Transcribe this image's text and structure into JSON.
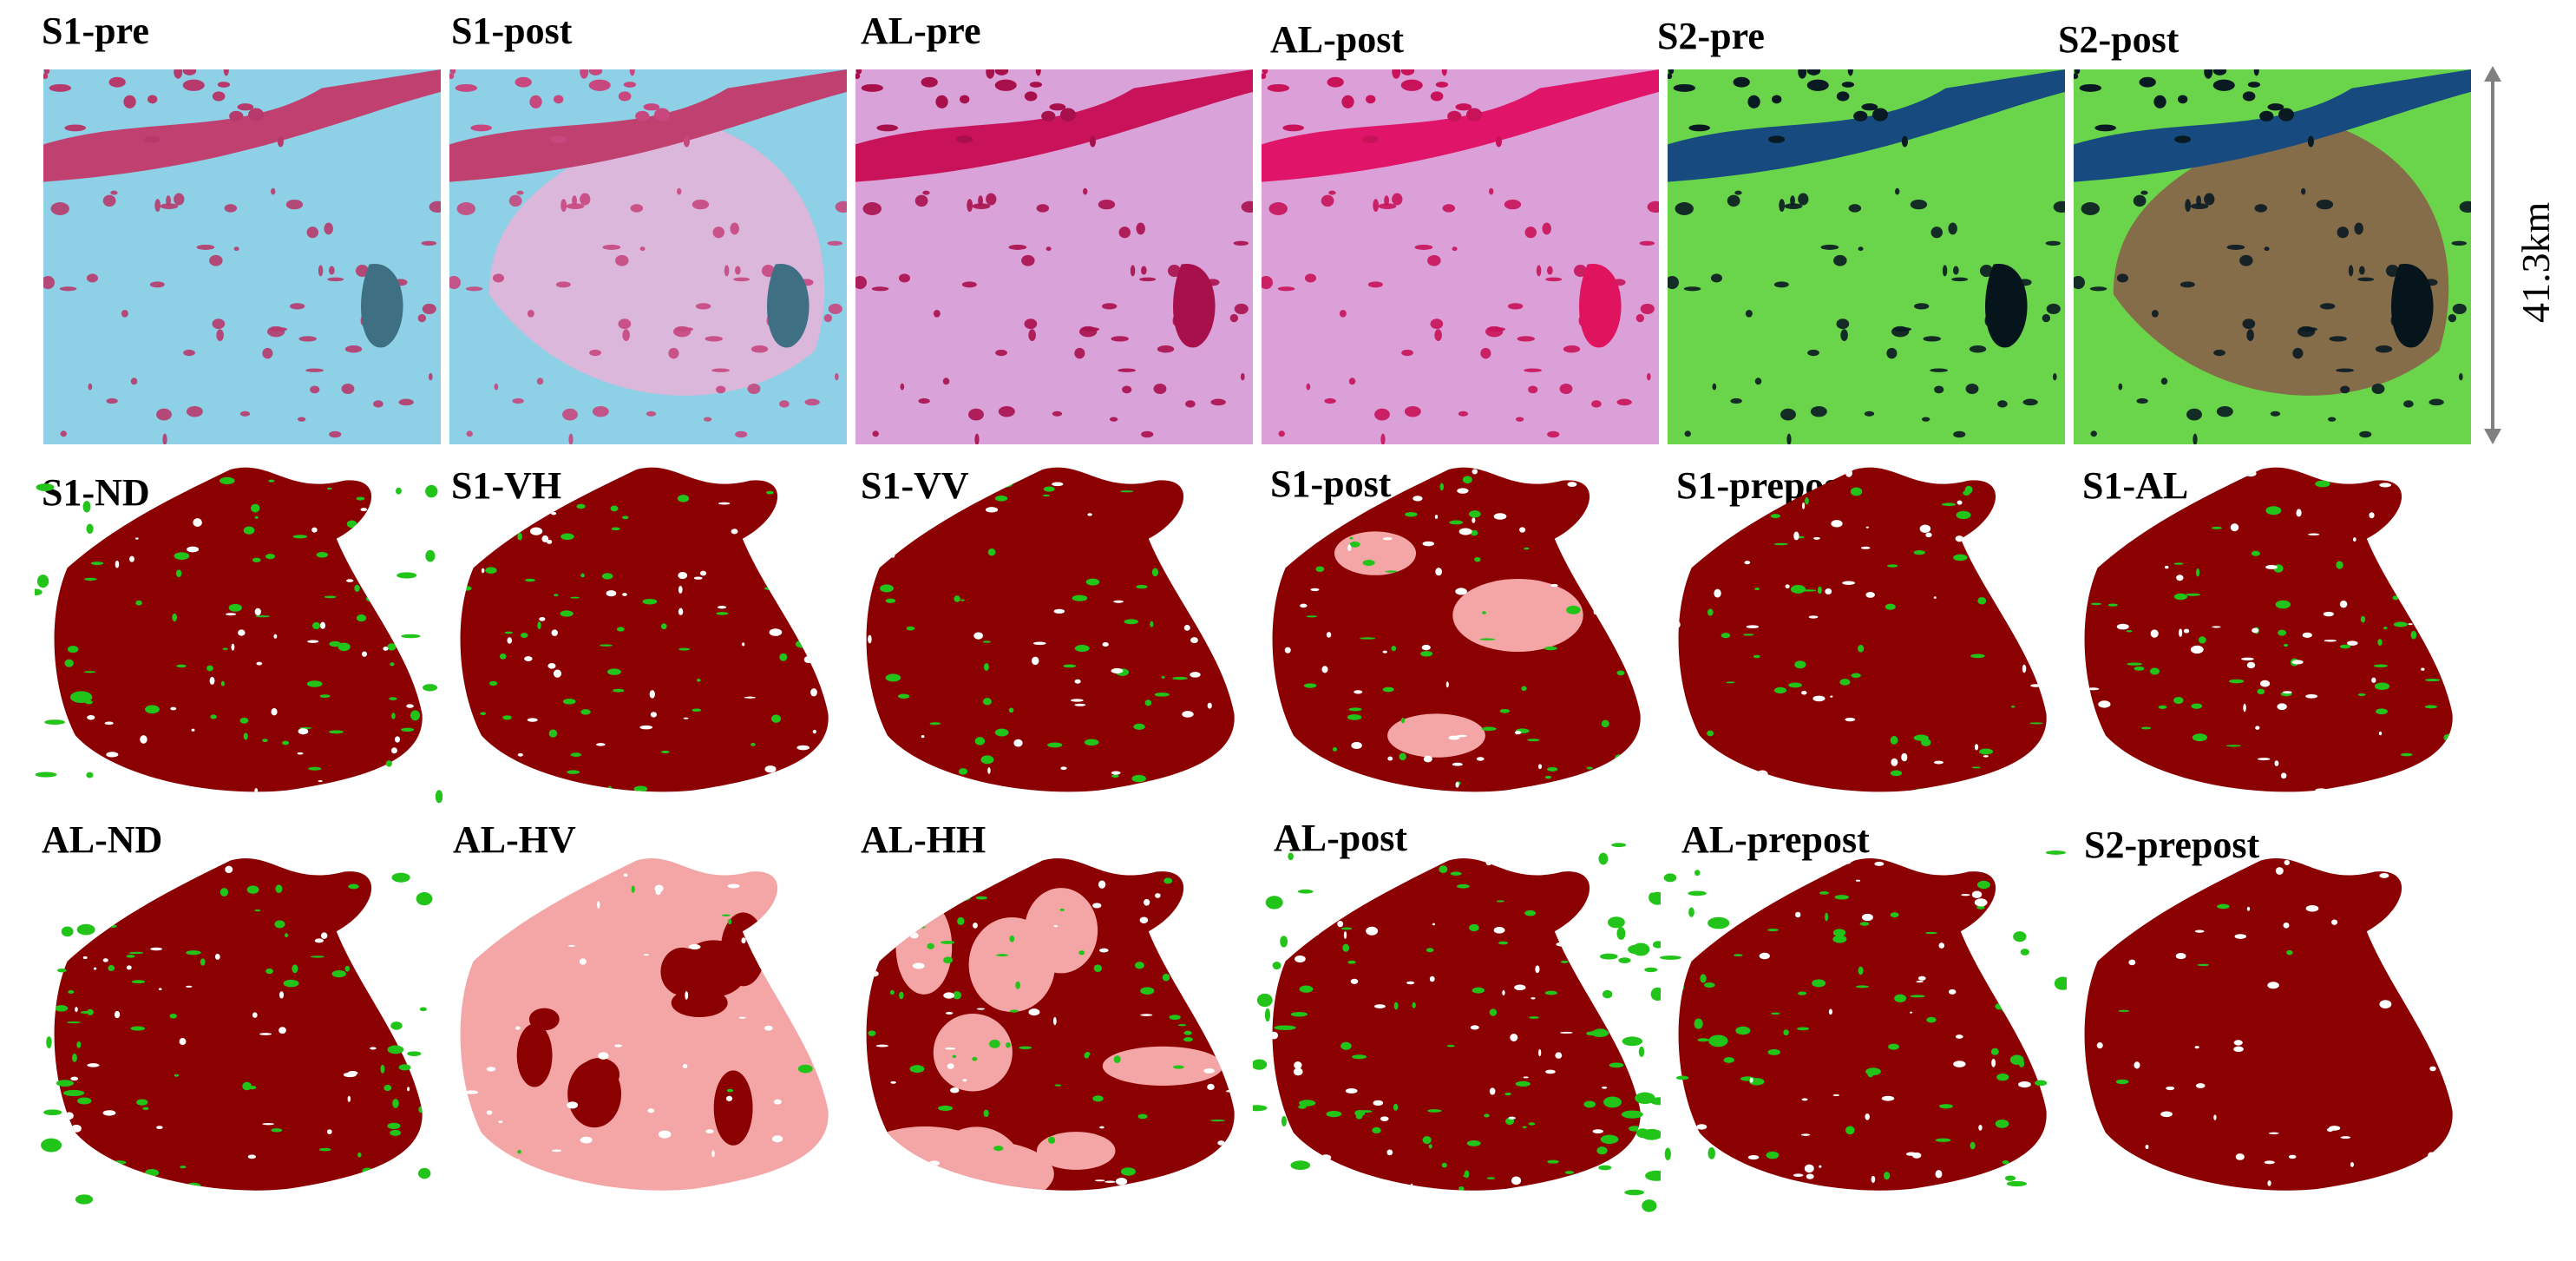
{
  "row1": {
    "tiles": [
      {
        "label": "S1-pre"
      },
      {
        "label": "S1-post"
      },
      {
        "label": "AL-pre"
      },
      {
        "label": "AL-post"
      },
      {
        "label": "S2-pre"
      },
      {
        "label": "S2-post"
      }
    ]
  },
  "row2": {
    "tiles": [
      {
        "label": "S1-ND"
      },
      {
        "label": "S1-VH"
      },
      {
        "label": "S1-VV"
      },
      {
        "label": "S1-post"
      },
      {
        "label": "S1-prepost"
      },
      {
        "label": "S1-AL"
      }
    ]
  },
  "row3": {
    "tiles": [
      {
        "label": "AL-ND"
      },
      {
        "label": "AL-HV"
      },
      {
        "label": "AL-HH"
      },
      {
        "label": "AL-post"
      },
      {
        "label": "AL-prepost"
      },
      {
        "label": "S2-prepost"
      }
    ]
  },
  "scale": {
    "label": "41.3km"
  },
  "colors": {
    "burned": "#8b0000",
    "unburned": "#22c41a",
    "commission": "#f4a6a6",
    "background": "#ffffff"
  }
}
